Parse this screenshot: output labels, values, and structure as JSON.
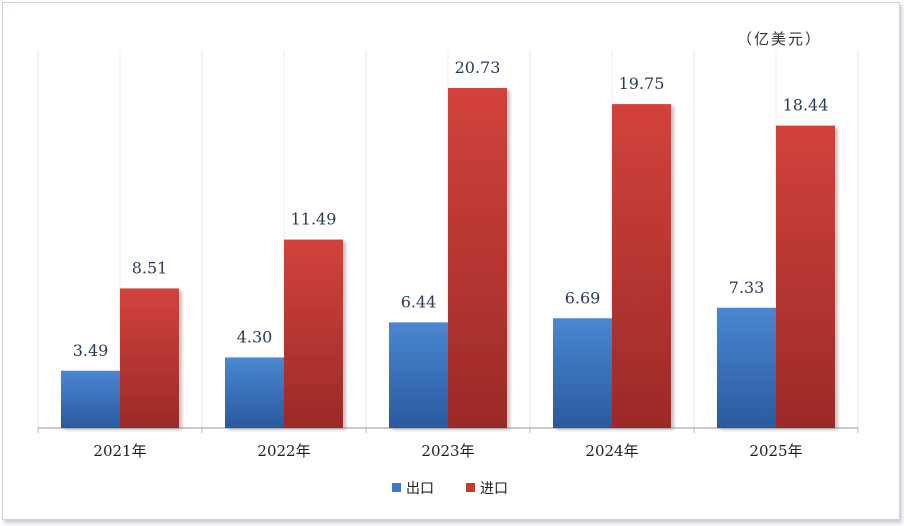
{
  "chart_data": {
    "type": "bar",
    "unit_label": "（亿美元）",
    "categories": [
      "2021年",
      "2022年",
      "2023年",
      "2024年",
      "2025年"
    ],
    "series": [
      {
        "name": "出口",
        "values": [
          3.49,
          4.3,
          6.44,
          6.69,
          7.33
        ],
        "labels": [
          "3.49",
          "4.30",
          "6.44",
          "6.69",
          "7.33"
        ]
      },
      {
        "name": "进口",
        "values": [
          8.51,
          11.49,
          20.73,
          19.75,
          18.44
        ],
        "labels": [
          "8.51",
          "11.49",
          "20.73",
          "19.75",
          "18.44"
        ]
      }
    ],
    "ylim": [
      0,
      25
    ],
    "grid": "vertical",
    "legend_position": "bottom",
    "colors": {
      "出口": "#3f78c4",
      "进口": "#c63a36"
    }
  }
}
